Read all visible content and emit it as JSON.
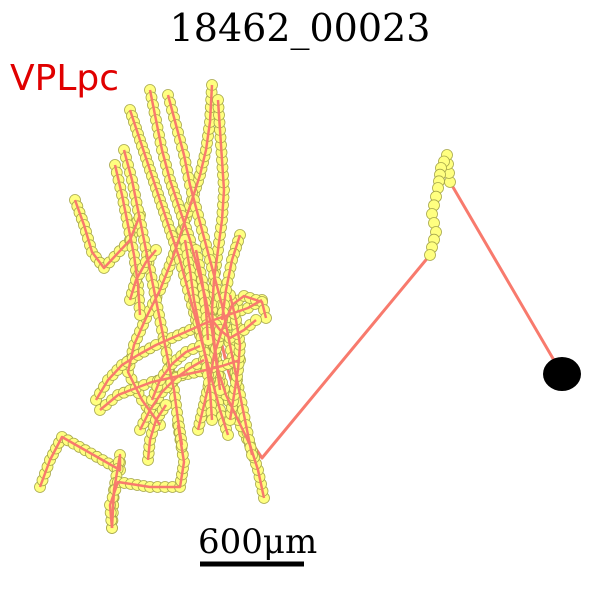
{
  "title": "18462_00023",
  "region_label": "VPLpc",
  "scale_bar": {
    "label": "600μm",
    "length_um": 600
  },
  "colors": {
    "background": "#ffffff",
    "trace": "#f87a6d",
    "node_fill": "#ffff80",
    "node_stroke": "#a8a84a",
    "soma": "#000000",
    "region_label": "#e00000",
    "scale_bar": "#000000"
  },
  "neuron": {
    "soma": "black-ellipse",
    "node_marker": "yellow-circle",
    "trace_style": "salmon-polyline"
  }
}
